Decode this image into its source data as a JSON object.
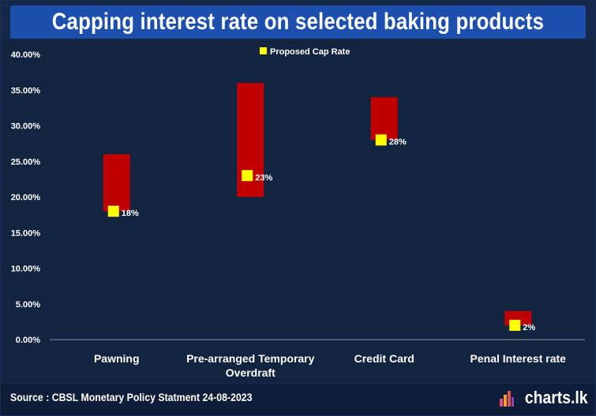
{
  "page": {
    "title": "Capping interest rate on selected baking products",
    "source": "Source : CBSL  Monetary Policy Statment 24-08-2023",
    "logo": "charts.lk"
  },
  "colors": {
    "background": "#14284a",
    "title_bar": "#1d4fae",
    "range_bar": "#c00000",
    "cap_marker": "#ffff00",
    "text": "#ffffff"
  },
  "chart_data": {
    "type": "bar",
    "subtype": "floating-range-with-marker",
    "categories": [
      "Pawning",
      "Pre-arranged Temporary Overdraft",
      "Credit Card",
      "Penal Interest rate"
    ],
    "category_lines": [
      [
        "Pawning"
      ],
      [
        "Pre-arranged Temporary",
        "Overdraft"
      ],
      [
        "Credit Card"
      ],
      [
        "Penal Interest rate"
      ]
    ],
    "ranges": [
      [
        18,
        26
      ],
      [
        20,
        36
      ],
      [
        28,
        34
      ],
      [
        2,
        4
      ]
    ],
    "series": [
      {
        "name": "Proposed Cap Rate",
        "values": [
          18,
          23,
          28,
          2
        ],
        "labels": [
          "18%",
          "23%",
          "28%",
          "2%"
        ]
      }
    ],
    "ylim": [
      0,
      40
    ],
    "yticks": [
      0,
      5,
      10,
      15,
      20,
      25,
      30,
      35,
      40
    ],
    "ytick_labels": [
      "0.00%",
      "5.00%",
      "10.00%",
      "15.00%",
      "20.00%",
      "25.00%",
      "30.00%",
      "35.00%",
      "40.00%"
    ],
    "legend_position": "top-center",
    "grid": false
  }
}
